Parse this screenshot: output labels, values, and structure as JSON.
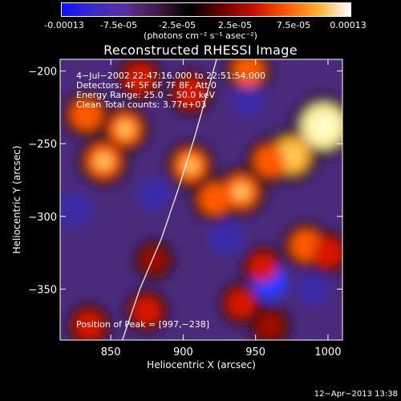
{
  "colorbar": {
    "colors": [
      "#1010ff",
      "#3a2bc8",
      "#5b2f9a",
      "#401b45",
      "#000000",
      "#6a0000",
      "#c81000",
      "#ff5a00",
      "#ffb030",
      "#ffffff"
    ],
    "ticks": [
      "-0.00013",
      "-7.5e-05",
      "-2.5e-05",
      "2.5e-05",
      "7.5e-05",
      "0.00013"
    ],
    "units": "(photons cm⁻² s⁻¹ asec⁻²)"
  },
  "chart_data": {
    "type": "heatmap",
    "title": "Reconstructed RHESSI Image",
    "xlabel": "Heliocentric X (arcsec)",
    "ylabel": "Heliocentric Y (arcsec)",
    "xlim": [
      815,
      1010
    ],
    "ylim": [
      -385,
      -192
    ],
    "xticks": [
      850,
      900,
      950,
      1000
    ],
    "yticks": [
      -200,
      -250,
      -300,
      -350
    ],
    "xtick_labels": [
      "850",
      "900",
      "950",
      "1000"
    ],
    "ytick_labels": [
      "−200",
      "−250",
      "−300",
      "−350"
    ],
    "annotations": [
      "4−Jul−2002 22:47:16.000 to 22:51:54.000",
      "Detectors: 4F 5F 6F 7F 8F, Att 0",
      "Energy Range: 25.0 − 50.0 keV",
      "Clean     Total counts: 3.77e+03"
    ],
    "peak_label": "Position of Peak = [997,−238]",
    "limb": [
      [
        858,
        -385
      ],
      [
        870,
        -350
      ],
      [
        885,
        -315
      ],
      [
        897,
        -280
      ],
      [
        908,
        -245
      ],
      [
        918,
        -210
      ],
      [
        923,
        -192
      ]
    ],
    "hot_spots": [
      {
        "x": 997,
        "y": -238,
        "v": 1.0
      },
      {
        "x": 975,
        "y": -258,
        "v": 0.75
      },
      {
        "x": 960,
        "y": -262,
        "v": 0.55
      },
      {
        "x": 940,
        "y": -283,
        "v": 0.65
      },
      {
        "x": 922,
        "y": -288,
        "v": 0.55
      },
      {
        "x": 905,
        "y": -265,
        "v": 0.6
      },
      {
        "x": 860,
        "y": -240,
        "v": 0.6
      },
      {
        "x": 845,
        "y": -262,
        "v": 0.65
      },
      {
        "x": 833,
        "y": -230,
        "v": 0.55
      },
      {
        "x": 870,
        "y": -205,
        "v": 0.5
      },
      {
        "x": 905,
        "y": -215,
        "v": 0.5
      },
      {
        "x": 945,
        "y": -200,
        "v": 0.55
      },
      {
        "x": 985,
        "y": -320,
        "v": 0.55
      },
      {
        "x": 1000,
        "y": -325,
        "v": 0.5
      },
      {
        "x": 955,
        "y": -335,
        "v": 0.45
      },
      {
        "x": 940,
        "y": -360,
        "v": 0.45
      },
      {
        "x": 875,
        "y": -365,
        "v": 0.45
      },
      {
        "x": 835,
        "y": -375,
        "v": 0.45
      },
      {
        "x": 960,
        "y": -375,
        "v": 0.4
      },
      {
        "x": 880,
        "y": -330,
        "v": 0.35
      }
    ],
    "cold_spots": [
      {
        "x": 825,
        "y": -295,
        "v": -0.55
      },
      {
        "x": 960,
        "y": -345,
        "v": -0.6
      },
      {
        "x": 945,
        "y": -220,
        "v": -0.5
      },
      {
        "x": 880,
        "y": -285,
        "v": -0.5
      },
      {
        "x": 930,
        "y": -315,
        "v": -0.55
      },
      {
        "x": 990,
        "y": -350,
        "v": -0.45
      }
    ]
  },
  "timestamp": "12−Apr−2013 13:38"
}
